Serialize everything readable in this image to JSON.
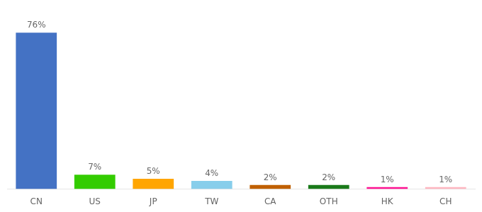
{
  "chart_data": {
    "type": "bar",
    "categories": [
      "CN",
      "US",
      "JP",
      "TW",
      "CA",
      "OTH",
      "HK",
      "CH"
    ],
    "values": [
      76,
      7,
      5,
      4,
      2,
      2,
      1,
      1
    ],
    "value_labels": [
      "76%",
      "7%",
      "5%",
      "4%",
      "2%",
      "2%",
      "1%",
      "1%"
    ],
    "colors": [
      "#4472C4",
      "#33CC00",
      "#FFA500",
      "#87CEEB",
      "#C06000",
      "#1A7A1A",
      "#FF1493",
      "#FFB6C1"
    ],
    "ylim": [
      0,
      85
    ],
    "grid": false,
    "data_labels": true,
    "tick_labels": "x"
  }
}
